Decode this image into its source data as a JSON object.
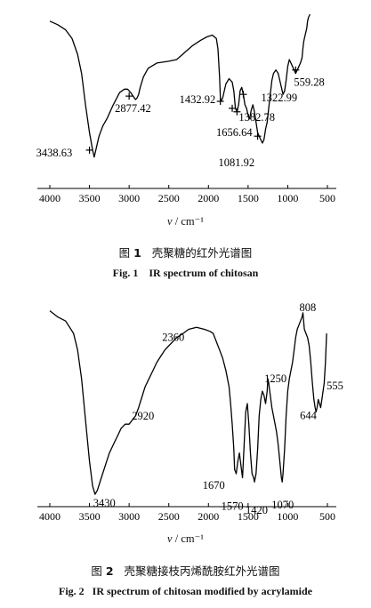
{
  "chart_data": [
    {
      "type": "line",
      "figure_label": "图",
      "figure_number": "1",
      "caption_cn": "壳聚糖的红外光谱图",
      "caption_en_label": "Fig. 1",
      "caption_en": "IR spectrum of chitosan",
      "xlabel_var": "v",
      "xlabel_unit": "/ cm⁻¹",
      "xlim": [
        4000,
        500
      ],
      "x_reversed": true,
      "xticks": [
        4000,
        3500,
        3000,
        2500,
        2000,
        1500,
        1000,
        500
      ],
      "xtick_labels": [
        "4000",
        "3500",
        "3000",
        "2500",
        "2000",
        "1500",
        "1000",
        "500"
      ],
      "ylim": [
        0,
        100
      ],
      "y_axis_shown": false,
      "series": [
        {
          "x": [
            4000,
            3900,
            3800,
            3720,
            3650,
            3600,
            3550,
            3500,
            3460,
            3440,
            3420,
            3380,
            3330,
            3280,
            3200,
            3120,
            3060,
            3020,
            2980,
            2950,
            2920,
            2900,
            2880,
            2860,
            2820,
            2760,
            2650,
            2500,
            2400,
            2300,
            2200,
            2100,
            2020,
            1950,
            1900,
            1880,
            1860,
            1850,
            1840,
            1820,
            1780,
            1740,
            1700,
            1680,
            1660,
            1640,
            1620,
            1600,
            1580,
            1560,
            1540,
            1520,
            1500,
            1480,
            1460,
            1440,
            1420,
            1400,
            1380,
            1360,
            1340,
            1320,
            1300,
            1280,
            1260,
            1240,
            1220,
            1200,
            1180,
            1150,
            1120,
            1100,
            1080,
            1060,
            1040,
            1020,
            1000,
            980,
            960,
            940,
            920,
            900,
            880,
            860,
            840,
            820,
            810,
            800,
            790,
            780,
            770,
            760,
            750,
            740,
            730,
            720
          ],
          "y": [
            96,
            94,
            91,
            86,
            77,
            66,
            48,
            32,
            22,
            18,
            22,
            30,
            36,
            40,
            48,
            55,
            57,
            57,
            55,
            53,
            51,
            52,
            54,
            58,
            64,
            69,
            72,
            73,
            74,
            78,
            82,
            85,
            87,
            88,
            86,
            80,
            64,
            52,
            50,
            52,
            60,
            63,
            61,
            56,
            46,
            44,
            48,
            56,
            58,
            54,
            48,
            46,
            42,
            40,
            45,
            48,
            44,
            38,
            32,
            30,
            28,
            26,
            28,
            34,
            38,
            46,
            54,
            62,
            66,
            68,
            66,
            62,
            58,
            54,
            56,
            62,
            70,
            74,
            72,
            70,
            68,
            66,
            68,
            70,
            72,
            75,
            80,
            84,
            86,
            88,
            90,
            92,
            96,
            98,
            99,
            100
          ]
        }
      ],
      "annotations": [
        {
          "text": "3438.63",
          "x": 3500,
          "y": 22
        },
        {
          "text": "2877.42",
          "x": 3000,
          "y": 53
        },
        {
          "text": "1432.92",
          "x": 1850,
          "y": 50
        },
        {
          "text": "1656.64",
          "x": 1700,
          "y": 46
        },
        {
          "text": "1382.78",
          "x": 1640,
          "y": 44
        },
        {
          "text": "1322.99",
          "x": 1560,
          "y": 54
        },
        {
          "text": "1081.92",
          "x": 1380,
          "y": 30
        },
        {
          "text": "559.28",
          "x": 900,
          "y": 68
        }
      ]
    },
    {
      "type": "line",
      "figure_label": "图",
      "figure_number": "2",
      "caption_cn": "壳聚糖接枝丙烯酰胺红外光谱图",
      "caption_en_label": "Fig. 2",
      "caption_en": "IR spectrum of chitosan modified by acrylamide",
      "xlabel_var": "v",
      "xlabel_unit": "/ cm⁻¹",
      "xlim": [
        4000,
        500
      ],
      "x_reversed": true,
      "xticks": [
        4000,
        3500,
        3000,
        2500,
        2000,
        1500,
        1000,
        500
      ],
      "xtick_labels": [
        "4000",
        "3500",
        "3000",
        "2500",
        "2000",
        "1500",
        "1000",
        "500"
      ],
      "ylim": [
        0,
        100
      ],
      "y_axis_shown": false,
      "series": [
        {
          "x": [
            4000,
            3900,
            3800,
            3700,
            3650,
            3600,
            3550,
            3500,
            3460,
            3430,
            3400,
            3350,
            3300,
            3250,
            3200,
            3150,
            3100,
            3050,
            3000,
            2960,
            2920,
            2880,
            2840,
            2800,
            2750,
            2700,
            2650,
            2600,
            2550,
            2500,
            2450,
            2400,
            2360,
            2320,
            2250,
            2150,
            2050,
            1980,
            1940,
            1900,
            1860,
            1820,
            1780,
            1740,
            1720,
            1700,
            1680,
            1670,
            1650,
            1630,
            1610,
            1590,
            1570,
            1550,
            1530,
            1510,
            1490,
            1470,
            1450,
            1430,
            1420,
            1400,
            1380,
            1360,
            1340,
            1320,
            1300,
            1280,
            1260,
            1250,
            1240,
            1220,
            1200,
            1180,
            1160,
            1140,
            1120,
            1100,
            1080,
            1070,
            1060,
            1040,
            1020,
            1000,
            980,
            960,
            940,
            920,
            900,
            880,
            860,
            840,
            820,
            808,
            790,
            770,
            750,
            730,
            710,
            690,
            670,
            655,
            644,
            630,
            615,
            600,
            585,
            570,
            555,
            540,
            525,
            510
          ],
          "y": [
            95,
            92,
            90,
            84,
            76,
            62,
            42,
            22,
            10,
            6,
            8,
            14,
            20,
            26,
            30,
            34,
            38,
            40,
            40,
            42,
            44,
            48,
            53,
            58,
            62,
            66,
            70,
            73,
            76,
            78,
            80,
            82,
            83,
            84,
            86,
            87,
            86,
            85,
            84,
            80,
            76,
            72,
            66,
            58,
            50,
            40,
            28,
            18,
            16,
            22,
            26,
            20,
            14,
            30,
            46,
            50,
            40,
            26,
            16,
            14,
            12,
            16,
            28,
            44,
            52,
            56,
            54,
            50,
            56,
            62,
            60,
            54,
            48,
            44,
            40,
            36,
            30,
            22,
            14,
            12,
            16,
            28,
            44,
            56,
            62,
            66,
            70,
            76,
            82,
            86,
            88,
            90,
            92,
            94,
            86,
            84,
            82,
            78,
            70,
            60,
            52,
            48,
            46,
            48,
            52,
            50,
            48,
            52,
            56,
            60,
            70,
            84
          ]
        }
      ],
      "annotations": [
        {
          "text": "3430",
          "x": 3430,
          "y": 6
        },
        {
          "text": "2920",
          "x": 2920,
          "y": 44
        },
        {
          "text": "2360",
          "x": 2360,
          "y": 83
        },
        {
          "text": "1670",
          "x": 1670,
          "y": 18
        },
        {
          "text": "1570",
          "x": 1570,
          "y": 14
        },
        {
          "text": "1420",
          "x": 1420,
          "y": 12
        },
        {
          "text": "1250",
          "x": 1250,
          "y": 62
        },
        {
          "text": "1070",
          "x": 1070,
          "y": 12
        },
        {
          "text": "808",
          "x": 808,
          "y": 94
        },
        {
          "text": "644",
          "x": 644,
          "y": 46
        },
        {
          "text": "555",
          "x": 555,
          "y": 56
        }
      ]
    }
  ]
}
